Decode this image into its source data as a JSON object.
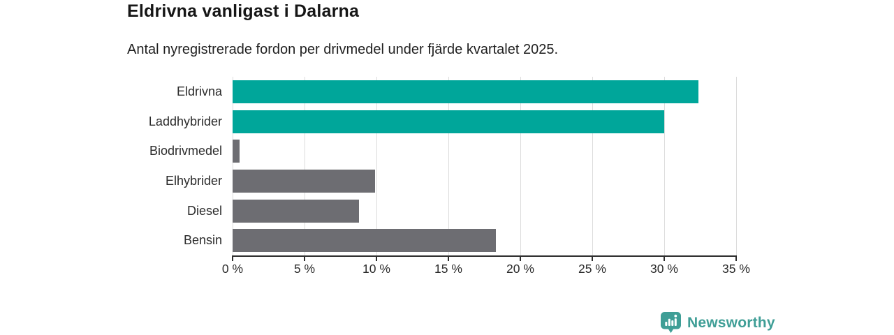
{
  "header": {
    "title": "Eldrivna vanligast i Dalarna",
    "subtitle": "Antal nyregistrerade fordon per drivmedel under fjärde kvartalet 2025."
  },
  "chart_data": {
    "type": "bar",
    "orientation": "horizontal",
    "title": "Eldrivna vanligast i Dalarna",
    "subtitle": "Antal nyregistrerade fordon per drivmedel under fjärde kvartalet 2025.",
    "categories": [
      "Eldrivna",
      "Laddhybrider",
      "Biodrivmedel",
      "Elhybrider",
      "Diesel",
      "Bensin"
    ],
    "values": [
      32.4,
      30.0,
      0.5,
      9.9,
      8.8,
      18.3
    ],
    "unit": "%",
    "bar_colors": [
      "#00a69a",
      "#00a69a",
      "#6d6d72",
      "#6d6d72",
      "#6d6d72",
      "#6d6d72"
    ],
    "xlim": [
      0,
      35
    ],
    "x_ticks": [
      0,
      5,
      10,
      15,
      20,
      25,
      30,
      35
    ],
    "x_tick_labels": [
      "0 %",
      "5 %",
      "10 %",
      "15 %",
      "20 %",
      "25 %",
      "30 %",
      "35 %"
    ],
    "xlabel": "",
    "ylabel": "",
    "grid": true,
    "legend": "none"
  },
  "colors": {
    "highlight": "#00a69a",
    "neutral": "#6d6d72",
    "axis": "#2d2d2d",
    "gridline": "#dcdcdc",
    "brand": "#3f9e96"
  },
  "footer": {
    "brand": "Newsworthy",
    "logo_icon": "newsworthy-pin-barchart-icon"
  }
}
